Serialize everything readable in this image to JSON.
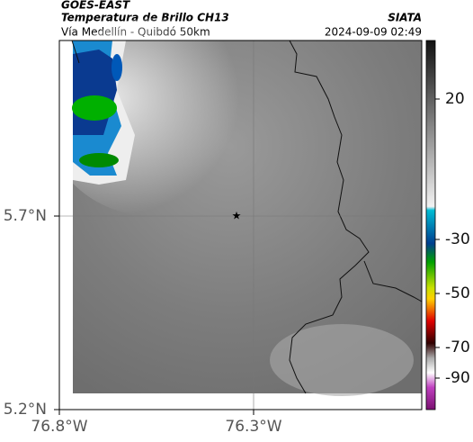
{
  "header": {
    "source": "GOES-EAST",
    "title": "Temperatura de Brillo CH13",
    "brand": "SIATA",
    "route": "Vía Medellín - Quibdó 50km",
    "timestamp": "2024-09-09 02:49"
  },
  "map": {
    "lat_labels": [
      "5.7°N",
      "5.2°N"
    ],
    "lon_labels": [
      "76.8°W",
      "76.3°W"
    ]
  },
  "colorbar": {
    "ticks": [
      20,
      -30,
      -50,
      -70,
      -90
    ]
  }
}
